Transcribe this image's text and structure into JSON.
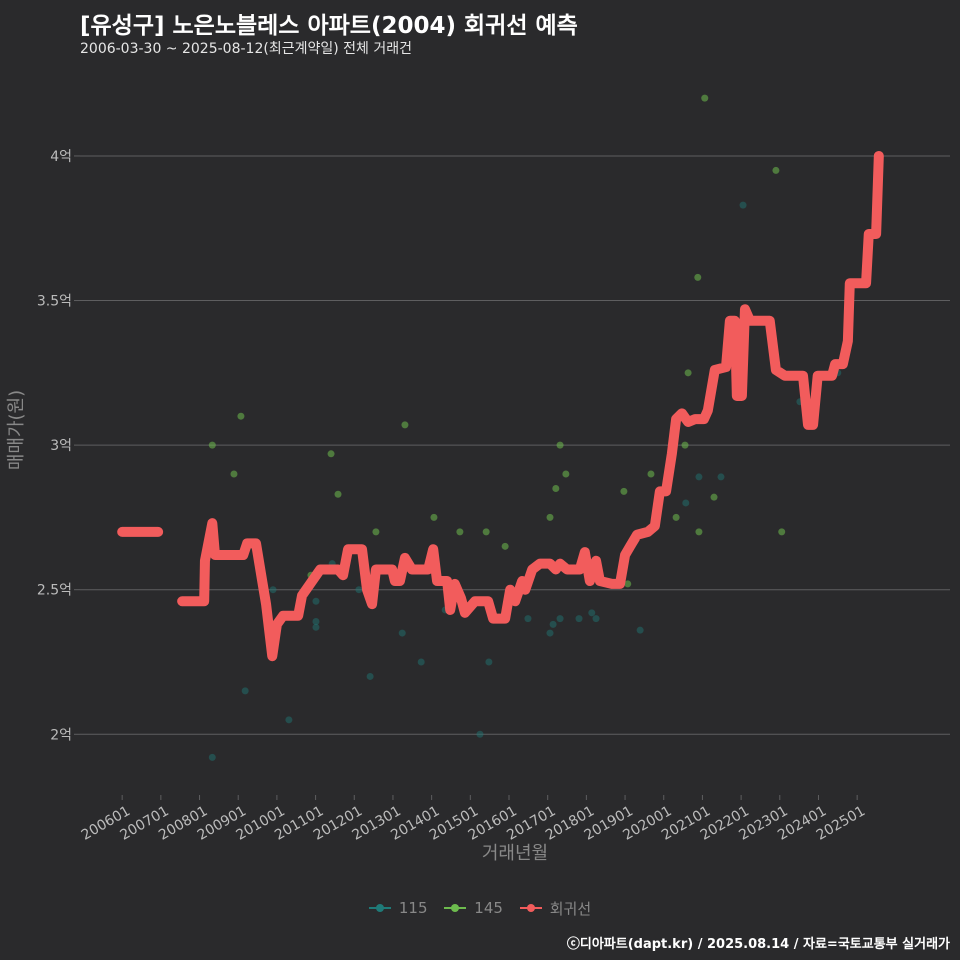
{
  "header": {
    "title": "[유성구] 노은노블레스 아파트(2004) 회귀선 예측",
    "subtitle": "2006-03-30 ~ 2025-08-12(최근계약일) 전체 거래건"
  },
  "footer": {
    "credit": "ⓒ디아파트(dapt.kr) / 2025.08.14 / 자료=국토교통부 실거래가"
  },
  "colors": {
    "background": "#2a2a2c",
    "regression": "#f25c5c",
    "s115": "#1f7a78",
    "s145": "#6dbb4e",
    "grid": "#5e5e60"
  },
  "chart_data": {
    "type": "scatter",
    "title": "[유성구] 노은노블레스 아파트(2004) 회귀선 예측",
    "xlabel": "거래년월",
    "ylabel": "매매가(원)",
    "xlim": [
      2004.91,
      2027.4
    ],
    "ylim": [
      1.79,
      4.28
    ],
    "x_ticks": [
      2006,
      2007,
      2008,
      2009,
      2010,
      2011,
      2012,
      2013,
      2014,
      2015,
      2016,
      2017,
      2018,
      2019,
      2020,
      2021,
      2022,
      2023,
      2024,
      2025
    ],
    "x_tick_labels": [
      "200601",
      "200701",
      "200801",
      "200901",
      "201001",
      "201101",
      "201201",
      "201301",
      "201401",
      "201501",
      "201601",
      "201701",
      "201801",
      "201901",
      "202001",
      "202101",
      "202201",
      "202301",
      "202401",
      "202501"
    ],
    "y_ticks": [
      2,
      2.5,
      3,
      3.5,
      4
    ],
    "y_tick_labels": [
      "2억",
      "2.5억",
      "3억",
      "3.5억",
      "4억"
    ],
    "grid": true,
    "legend_position": "bottom",
    "legend": [
      "115",
      "145",
      "회귀선"
    ],
    "series": [
      {
        "name": "115",
        "type": "scatter",
        "points": [
          [
            2008.33,
            1.92
          ],
          [
            2009.18,
            2.15
          ],
          [
            2009.9,
            2.5
          ],
          [
            2010.31,
            2.05
          ],
          [
            2011.01,
            2.46
          ],
          [
            2011.01,
            2.39
          ],
          [
            2011.01,
            2.37
          ],
          [
            2011.43,
            2.59
          ],
          [
            2012.12,
            2.5
          ],
          [
            2012.41,
            2.2
          ],
          [
            2013.24,
            2.35
          ],
          [
            2013.73,
            2.25
          ],
          [
            2014.35,
            2.43
          ],
          [
            2015.25,
            2.0
          ],
          [
            2015.48,
            2.25
          ],
          [
            2016.49,
            2.4
          ],
          [
            2017.06,
            2.35
          ],
          [
            2017.14,
            2.38
          ],
          [
            2017.32,
            2.4
          ],
          [
            2017.81,
            2.4
          ],
          [
            2018.14,
            2.42
          ],
          [
            2018.25,
            2.4
          ],
          [
            2019.39,
            2.36
          ],
          [
            2020.57,
            2.8
          ],
          [
            2020.91,
            2.89
          ],
          [
            2021.48,
            2.89
          ],
          [
            2022.05,
            3.83
          ],
          [
            2023.52,
            3.15
          ],
          [
            2024.5,
            3.25
          ]
        ]
      },
      {
        "name": "145",
        "type": "scatter",
        "points": [
          [
            2008.33,
            3.0
          ],
          [
            2008.89,
            2.9
          ],
          [
            2009.07,
            3.1
          ],
          [
            2010.88,
            2.55
          ],
          [
            2011.4,
            2.97
          ],
          [
            2011.58,
            2.83
          ],
          [
            2012.56,
            2.7
          ],
          [
            2013.31,
            3.07
          ],
          [
            2014.06,
            2.75
          ],
          [
            2014.73,
            2.7
          ],
          [
            2015.41,
            2.7
          ],
          [
            2015.9,
            2.65
          ],
          [
            2017.06,
            2.75
          ],
          [
            2017.21,
            2.85
          ],
          [
            2017.32,
            3.0
          ],
          [
            2017.47,
            2.9
          ],
          [
            2018.97,
            2.84
          ],
          [
            2019.07,
            2.52
          ],
          [
            2019.67,
            2.9
          ],
          [
            2020.32,
            2.75
          ],
          [
            2020.55,
            3.0
          ],
          [
            2020.63,
            3.25
          ],
          [
            2020.88,
            3.58
          ],
          [
            2020.91,
            2.7
          ],
          [
            2021.06,
            4.2
          ],
          [
            2021.3,
            2.82
          ],
          [
            2022.9,
            3.95
          ],
          [
            2023.05,
            2.7
          ]
        ]
      },
      {
        "name": "회귀선",
        "type": "line",
        "segments": [
          [
            [
              2006.0,
              2.7
            ],
            [
              2006.93,
              2.7
            ]
          ],
          [
            [
              2007.55,
              2.46
            ],
            [
              2008.12,
              2.46
            ],
            [
              2008.14,
              2.6
            ],
            [
              2008.33,
              2.73
            ],
            [
              2008.4,
              2.62
            ],
            [
              2009.13,
              2.62
            ],
            [
              2009.23,
              2.66
            ],
            [
              2009.46,
              2.66
            ],
            [
              2009.62,
              2.53
            ],
            [
              2009.72,
              2.45
            ],
            [
              2009.88,
              2.27
            ],
            [
              2010.0,
              2.38
            ],
            [
              2010.16,
              2.41
            ],
            [
              2010.55,
              2.41
            ],
            [
              2010.65,
              2.48
            ],
            [
              2010.86,
              2.52
            ],
            [
              2011.12,
              2.57
            ],
            [
              2011.58,
              2.57
            ],
            [
              2011.71,
              2.55
            ],
            [
              2011.84,
              2.64
            ],
            [
              2012.2,
              2.64
            ],
            [
              2012.33,
              2.5
            ],
            [
              2012.46,
              2.45
            ],
            [
              2012.56,
              2.57
            ],
            [
              2012.98,
              2.57
            ],
            [
              2013.05,
              2.53
            ],
            [
              2013.18,
              2.53
            ],
            [
              2013.31,
              2.61
            ],
            [
              2013.49,
              2.57
            ],
            [
              2013.91,
              2.57
            ],
            [
              2014.04,
              2.64
            ],
            [
              2014.14,
              2.53
            ],
            [
              2014.4,
              2.53
            ],
            [
              2014.48,
              2.43
            ],
            [
              2014.6,
              2.52
            ],
            [
              2014.76,
              2.47
            ],
            [
              2014.86,
              2.42
            ],
            [
              2015.12,
              2.46
            ],
            [
              2015.46,
              2.46
            ],
            [
              2015.59,
              2.4
            ],
            [
              2015.9,
              2.4
            ],
            [
              2016.03,
              2.5
            ],
            [
              2016.16,
              2.46
            ],
            [
              2016.34,
              2.53
            ],
            [
              2016.42,
              2.5
            ],
            [
              2016.6,
              2.57
            ],
            [
              2016.8,
              2.59
            ],
            [
              2017.06,
              2.59
            ],
            [
              2017.21,
              2.57
            ],
            [
              2017.32,
              2.59
            ],
            [
              2017.5,
              2.57
            ],
            [
              2017.83,
              2.57
            ],
            [
              2017.96,
              2.63
            ],
            [
              2018.09,
              2.53
            ],
            [
              2018.25,
              2.6
            ],
            [
              2018.35,
              2.53
            ],
            [
              2018.66,
              2.52
            ],
            [
              2018.87,
              2.52
            ],
            [
              2019.0,
              2.62
            ],
            [
              2019.13,
              2.65
            ],
            [
              2019.31,
              2.69
            ],
            [
              2019.59,
              2.7
            ],
            [
              2019.77,
              2.72
            ],
            [
              2019.9,
              2.84
            ],
            [
              2020.06,
              2.84
            ],
            [
              2020.21,
              2.97
            ],
            [
              2020.32,
              3.09
            ],
            [
              2020.47,
              3.11
            ],
            [
              2020.63,
              3.08
            ],
            [
              2020.81,
              3.09
            ],
            [
              2021.04,
              3.09
            ],
            [
              2021.14,
              3.12
            ],
            [
              2021.32,
              3.26
            ],
            [
              2021.61,
              3.27
            ],
            [
              2021.71,
              3.43
            ],
            [
              2021.84,
              3.43
            ],
            [
              2021.89,
              3.17
            ],
            [
              2022.02,
              3.17
            ],
            [
              2022.1,
              3.47
            ],
            [
              2022.23,
              3.43
            ],
            [
              2022.74,
              3.43
            ],
            [
              2022.9,
              3.26
            ],
            [
              2023.13,
              3.24
            ],
            [
              2023.6,
              3.24
            ],
            [
              2023.73,
              3.07
            ],
            [
              2023.86,
              3.07
            ],
            [
              2023.98,
              3.24
            ],
            [
              2024.35,
              3.24
            ],
            [
              2024.43,
              3.28
            ],
            [
              2024.63,
              3.28
            ],
            [
              2024.76,
              3.36
            ],
            [
              2024.81,
              3.56
            ],
            [
              2025.23,
              3.56
            ],
            [
              2025.3,
              3.73
            ],
            [
              2025.49,
              3.73
            ],
            [
              2025.56,
              4.0
            ]
          ]
        ]
      }
    ]
  }
}
